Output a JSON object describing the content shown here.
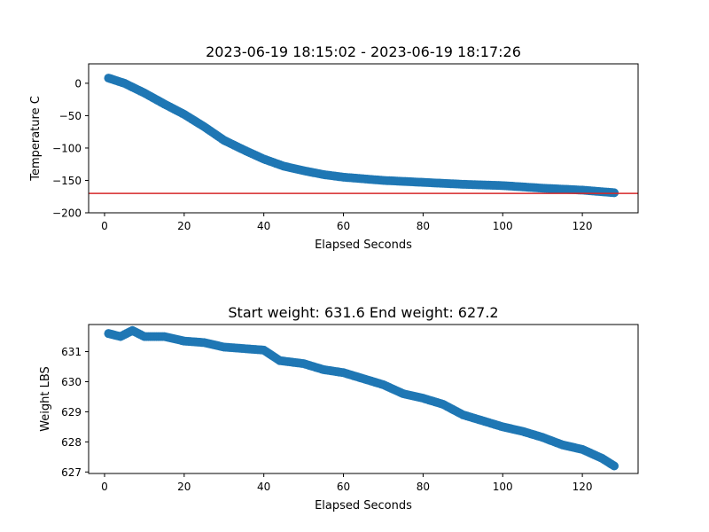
{
  "chart_data": [
    {
      "type": "scatter",
      "title": "2023-06-19 18:15:02 - 2023-06-19 18:17:26",
      "xlabel": "Elapsed Seconds",
      "ylabel": "Temperature C",
      "xlim": [
        -4,
        134
      ],
      "ylim": [
        -200,
        30
      ],
      "xticks": [
        0,
        20,
        40,
        60,
        80,
        100,
        120
      ],
      "yticks": [
        0,
        -50,
        -100,
        -150,
        -200
      ],
      "xtick_labels": [
        "0",
        "20",
        "40",
        "60",
        "80",
        "100",
        "120"
      ],
      "ytick_labels": [
        "0",
        "−50",
        "−100",
        "−150",
        "−200"
      ],
      "grid": false,
      "marker_color": "#1f77b4",
      "reference_line": {
        "y": -170,
        "color": "#d62728"
      },
      "curve_points": [
        [
          1,
          8
        ],
        [
          5,
          0
        ],
        [
          10,
          -15
        ],
        [
          15,
          -32
        ],
        [
          20,
          -48
        ],
        [
          25,
          -67
        ],
        [
          30,
          -88
        ],
        [
          35,
          -103
        ],
        [
          40,
          -117
        ],
        [
          45,
          -128
        ],
        [
          50,
          -135
        ],
        [
          55,
          -141
        ],
        [
          60,
          -145
        ],
        [
          70,
          -150
        ],
        [
          80,
          -153
        ],
        [
          90,
          -156
        ],
        [
          100,
          -158
        ],
        [
          110,
          -162
        ],
        [
          120,
          -165
        ],
        [
          128,
          -169
        ]
      ],
      "x_start": 1,
      "x_end": 128
    },
    {
      "type": "scatter",
      "title": "Start weight: 631.6 End weight: 627.2",
      "xlabel": "Elapsed Seconds",
      "ylabel": "Weight LBS",
      "xlim": [
        -4,
        134
      ],
      "ylim": [
        626.95,
        631.9
      ],
      "xticks": [
        0,
        20,
        40,
        60,
        80,
        100,
        120
      ],
      "yticks": [
        627,
        628,
        629,
        630,
        631
      ],
      "xtick_labels": [
        "0",
        "20",
        "40",
        "60",
        "80",
        "100",
        "120"
      ],
      "ytick_labels": [
        "627",
        "628",
        "629",
        "630",
        "631"
      ],
      "grid": false,
      "marker_color": "#1f77b4",
      "curve_points": [
        [
          1,
          631.6
        ],
        [
          4,
          631.5
        ],
        [
          7,
          631.7
        ],
        [
          10,
          631.5
        ],
        [
          15,
          631.5
        ],
        [
          20,
          631.35
        ],
        [
          25,
          631.3
        ],
        [
          30,
          631.15
        ],
        [
          35,
          631.1
        ],
        [
          40,
          631.05
        ],
        [
          44,
          630.7
        ],
        [
          50,
          630.6
        ],
        [
          55,
          630.4
        ],
        [
          60,
          630.3
        ],
        [
          65,
          630.1
        ],
        [
          70,
          629.9
        ],
        [
          75,
          629.6
        ],
        [
          80,
          629.45
        ],
        [
          85,
          629.25
        ],
        [
          90,
          628.9
        ],
        [
          95,
          628.7
        ],
        [
          100,
          628.5
        ],
        [
          105,
          628.35
        ],
        [
          110,
          628.15
        ],
        [
          115,
          627.9
        ],
        [
          120,
          627.75
        ],
        [
          125,
          627.45
        ],
        [
          128,
          627.2
        ]
      ],
      "x_start": 1,
      "x_end": 128
    }
  ]
}
